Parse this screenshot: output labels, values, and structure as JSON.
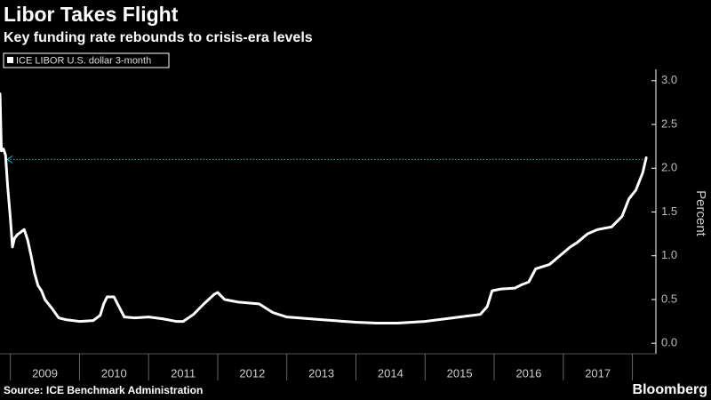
{
  "chart_data": {
    "type": "line",
    "title": "Libor Takes Flight",
    "subtitle": "Key funding rate rebounds to crisis-era levels",
    "y_label": "Percent",
    "source": "Source: ICE Benchmark Administration",
    "brand": "Bloomberg",
    "x": [
      2008.85,
      2008.87,
      2008.9,
      2008.93,
      2008.96,
      2009.0,
      2009.03,
      2009.06,
      2009.1,
      2009.15,
      2009.2,
      2009.25,
      2009.3,
      2009.35,
      2009.4,
      2009.45,
      2009.5,
      2009.6,
      2009.7,
      2009.8,
      2010.0,
      2010.2,
      2010.3,
      2010.35,
      2010.4,
      2010.5,
      2010.55,
      2010.65,
      2010.8,
      2011.0,
      2011.2,
      2011.4,
      2011.5,
      2011.65,
      2011.8,
      2011.95,
      2012.0,
      2012.1,
      2012.3,
      2012.6,
      2012.8,
      2013.0,
      2013.5,
      2014.0,
      2014.3,
      2014.6,
      2015.0,
      2015.3,
      2015.6,
      2015.8,
      2015.9,
      2015.97,
      2016.1,
      2016.3,
      2016.4,
      2016.5,
      2016.6,
      2016.8,
      2016.95,
      2017.1,
      2017.2,
      2017.35,
      2017.5,
      2017.7,
      2017.85,
      2017.95,
      2018.05,
      2018.15,
      2018.2
    ],
    "series": [
      {
        "name": "ICE LIBOR U.S. dollar 3-month",
        "color": "#ffffff",
        "values": [
          2.85,
          2.2,
          2.22,
          2.15,
          1.8,
          1.43,
          1.1,
          1.2,
          1.24,
          1.27,
          1.3,
          1.18,
          1.0,
          0.8,
          0.66,
          0.6,
          0.5,
          0.4,
          0.29,
          0.27,
          0.25,
          0.26,
          0.32,
          0.45,
          0.53,
          0.53,
          0.45,
          0.3,
          0.29,
          0.3,
          0.28,
          0.25,
          0.25,
          0.33,
          0.45,
          0.56,
          0.58,
          0.5,
          0.47,
          0.45,
          0.35,
          0.3,
          0.27,
          0.24,
          0.23,
          0.23,
          0.25,
          0.28,
          0.31,
          0.33,
          0.42,
          0.6,
          0.62,
          0.63,
          0.67,
          0.7,
          0.85,
          0.9,
          1.0,
          1.1,
          1.15,
          1.25,
          1.3,
          1.33,
          1.45,
          1.65,
          1.75,
          1.95,
          2.12
        ]
      }
    ],
    "reference_line": 2.1,
    "reference_color": "#2ab0c8",
    "xlim": [
      2008.85,
      2018.34
    ],
    "xticks": [
      2009,
      2010,
      2011,
      2012,
      2013,
      2014,
      2015,
      2016,
      2017
    ],
    "ylim": [
      -0.12,
      3.13
    ],
    "yticks": [
      {
        "value": 0,
        "label": "0.0"
      },
      0.5,
      {
        "value": 1,
        "label": "1.0"
      },
      1.5,
      {
        "value": 2,
        "label": "2.0"
      },
      2.5,
      {
        "value": 3,
        "label": "3.0"
      }
    ]
  }
}
